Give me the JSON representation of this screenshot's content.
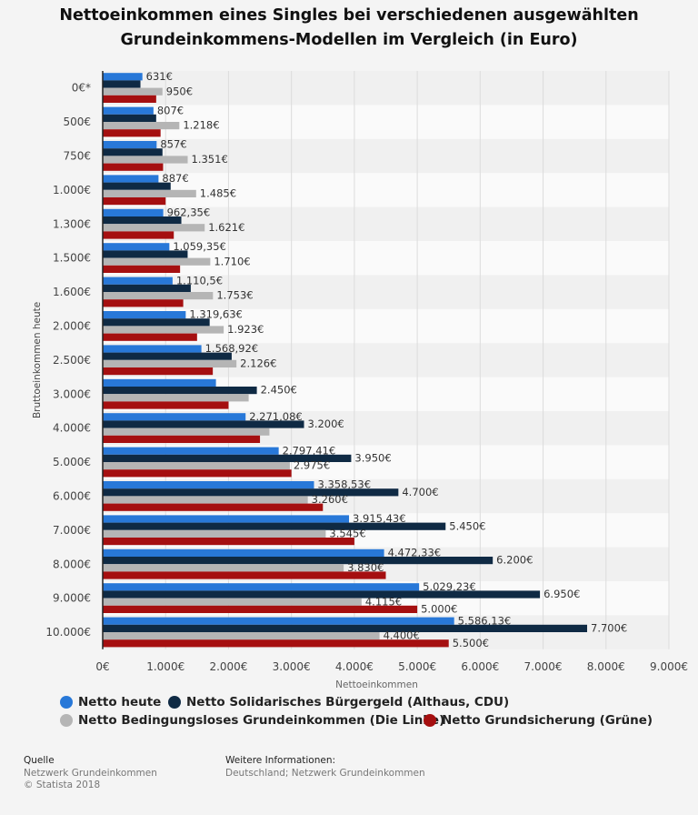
{
  "title_line1": "Nettoeinkommen eines Singles bei verschiedenen ausgewählten",
  "title_line2": "Grundeinkommens-Modellen im Vergleich (in Euro)",
  "chart_data": {
    "type": "bar",
    "orientation": "horizontal",
    "ylabel": "Bruttoeinkommen heute",
    "xlabel": "Nettoeinkommen",
    "xlim": [
      0,
      9000
    ],
    "xticks": [
      0,
      1000,
      2000,
      3000,
      4000,
      5000,
      6000,
      7000,
      8000,
      9000
    ],
    "xtick_labels": [
      "0€",
      "1.000€",
      "2.000€",
      "3.000€",
      "4.000€",
      "5.000€",
      "6.000€",
      "7.000€",
      "8.000€",
      "9.000€"
    ],
    "categories": [
      "0€*",
      "500€",
      "750€",
      "1.000€",
      "1.300€",
      "1.500€",
      "1.600€",
      "2.000€",
      "2.500€",
      "3.000€",
      "4.000€",
      "5.000€",
      "6.000€",
      "7.000€",
      "8.000€",
      "9.000€",
      "10.000€"
    ],
    "series": [
      {
        "name": "Netto heute",
        "color": "#2878d8",
        "values": [
          631,
          807,
          857,
          887,
          962.35,
          1059.35,
          1110.5,
          1319.63,
          1568.92,
          1800,
          2271.08,
          2797.41,
          3358.53,
          3915.43,
          4472.33,
          5029.23,
          5586.13
        ],
        "labels": [
          "631€",
          "807€",
          "857€",
          "887€",
          "962,35€",
          "1.059,35€",
          "1.110,5€",
          "1.319,63€",
          "1.568,92€",
          "",
          "2.271,08€",
          "2.797,41€",
          "3.358,53€",
          "3.915,43€",
          "4.472,33€",
          "5.029,23€",
          "5.586,13€"
        ]
      },
      {
        "name": "Netto Solidarisches Bürgergeld (Althaus, CDU)",
        "color": "#0f2a44",
        "values": [
          600,
          850,
          950,
          1080,
          1250,
          1350,
          1400,
          1700,
          2050,
          2450,
          3200,
          3950,
          4700,
          5450,
          6200,
          6950,
          7700
        ],
        "labels": [
          "",
          "",
          "",
          "",
          "",
          "",
          "",
          "",
          "",
          "2.450€",
          "3.200€",
          "3.950€",
          "4.700€",
          "5.450€",
          "6.200€",
          "6.950€",
          "7.700€"
        ]
      },
      {
        "name": "Netto Bedingungsloses Grundeinkommen (Die Linke)",
        "color": "#b5b5b5",
        "values": [
          950,
          1218,
          1351,
          1485,
          1621,
          1710,
          1753,
          1923,
          2126,
          2320,
          2650,
          2975,
          3260,
          3545,
          3830,
          4115,
          4400
        ],
        "labels": [
          "950€",
          "1.218€",
          "1.351€",
          "1.485€",
          "1.621€",
          "1.710€",
          "1.753€",
          "1.923€",
          "2.126€",
          "",
          "",
          "2.975€",
          "3.260€",
          "3.545€",
          "3.830€",
          "4.115€",
          "4.400€"
        ]
      },
      {
        "name": "Netto Grundsicherung (Grüne)",
        "color": "#a50f10",
        "values": [
          850,
          920,
          960,
          1000,
          1130,
          1230,
          1280,
          1500,
          1750,
          2000,
          2500,
          3000,
          3500,
          4000,
          4500,
          5000,
          5500
        ],
        "labels": [
          "",
          "",
          "",
          "",
          "",
          "",
          "",
          "",
          "",
          "",
          "",
          "",
          "",
          "",
          "",
          "5.000€",
          "5.500€"
        ]
      }
    ]
  },
  "legend": [
    {
      "label": "Netto heute",
      "color": "#2878d8"
    },
    {
      "label": "Netto Solidarisches Bürgergeld (Althaus, CDU)",
      "color": "#0f2a44"
    },
    {
      "label": "Netto Bedingungsloses Grundeinkommen (Die Linke)",
      "color": "#b5b5b5"
    },
    {
      "label": "Netto Grundsicherung (Grüne)",
      "color": "#a50f10"
    }
  ],
  "footer": {
    "source_heading": "Quelle",
    "source_line1": "Netzwerk Grundeinkommen",
    "source_line2": "© Statista 2018",
    "info_heading": "Weitere Informationen:",
    "info_line1": "Deutschland; Netzwerk Grundeinkommen"
  }
}
